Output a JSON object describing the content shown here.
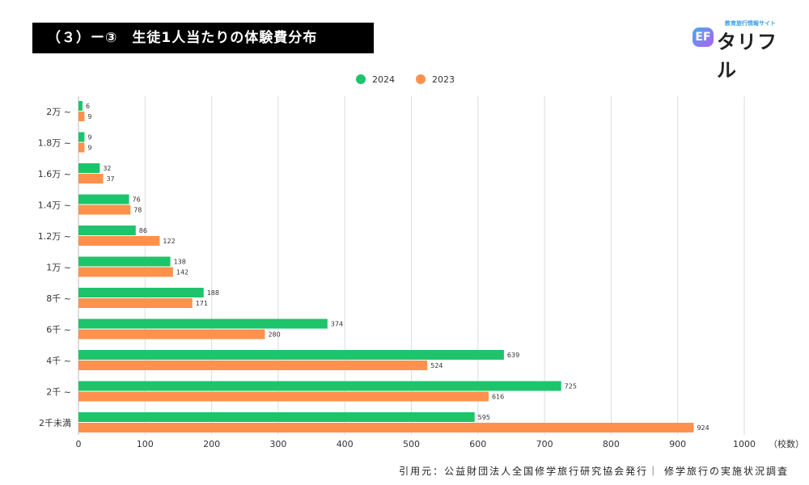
{
  "title": "（３）ー③　生徒1人当たりの体験費分布",
  "logo": {
    "subtitle": "教育旅行情報サイト",
    "name": "タリフル",
    "mark": "EF"
  },
  "source": "引用元：公益財団法人全国修学旅行研究協会発行｜ 修学旅行の実施状況調査",
  "chart_data": {
    "type": "bar",
    "orientation": "horizontal",
    "categories": [
      "2万 ~",
      "1.8万 ~",
      "1.6万 ~",
      "1.4万 ~",
      "1.2万 ~",
      "1万 ~",
      "8千 ~",
      "6千 ~",
      "4千 ~",
      "2千 ~",
      "2千未満"
    ],
    "series": [
      {
        "name": "2024",
        "color": "#1dc46b",
        "values": [
          6,
          9,
          32,
          76,
          86,
          138,
          188,
          374,
          639,
          725,
          595
        ]
      },
      {
        "name": "2023",
        "color": "#ff914d",
        "values": [
          9,
          9,
          37,
          78,
          122,
          142,
          171,
          280,
          524,
          616,
          924
        ]
      }
    ],
    "xlim": [
      0,
      1000
    ],
    "xticks": [
      "0",
      "100",
      "200",
      "300",
      "400",
      "500",
      "600",
      "700",
      "800",
      "900",
      "1000"
    ],
    "xlabel": "（校数）",
    "grid": true,
    "legend": "top-center"
  }
}
